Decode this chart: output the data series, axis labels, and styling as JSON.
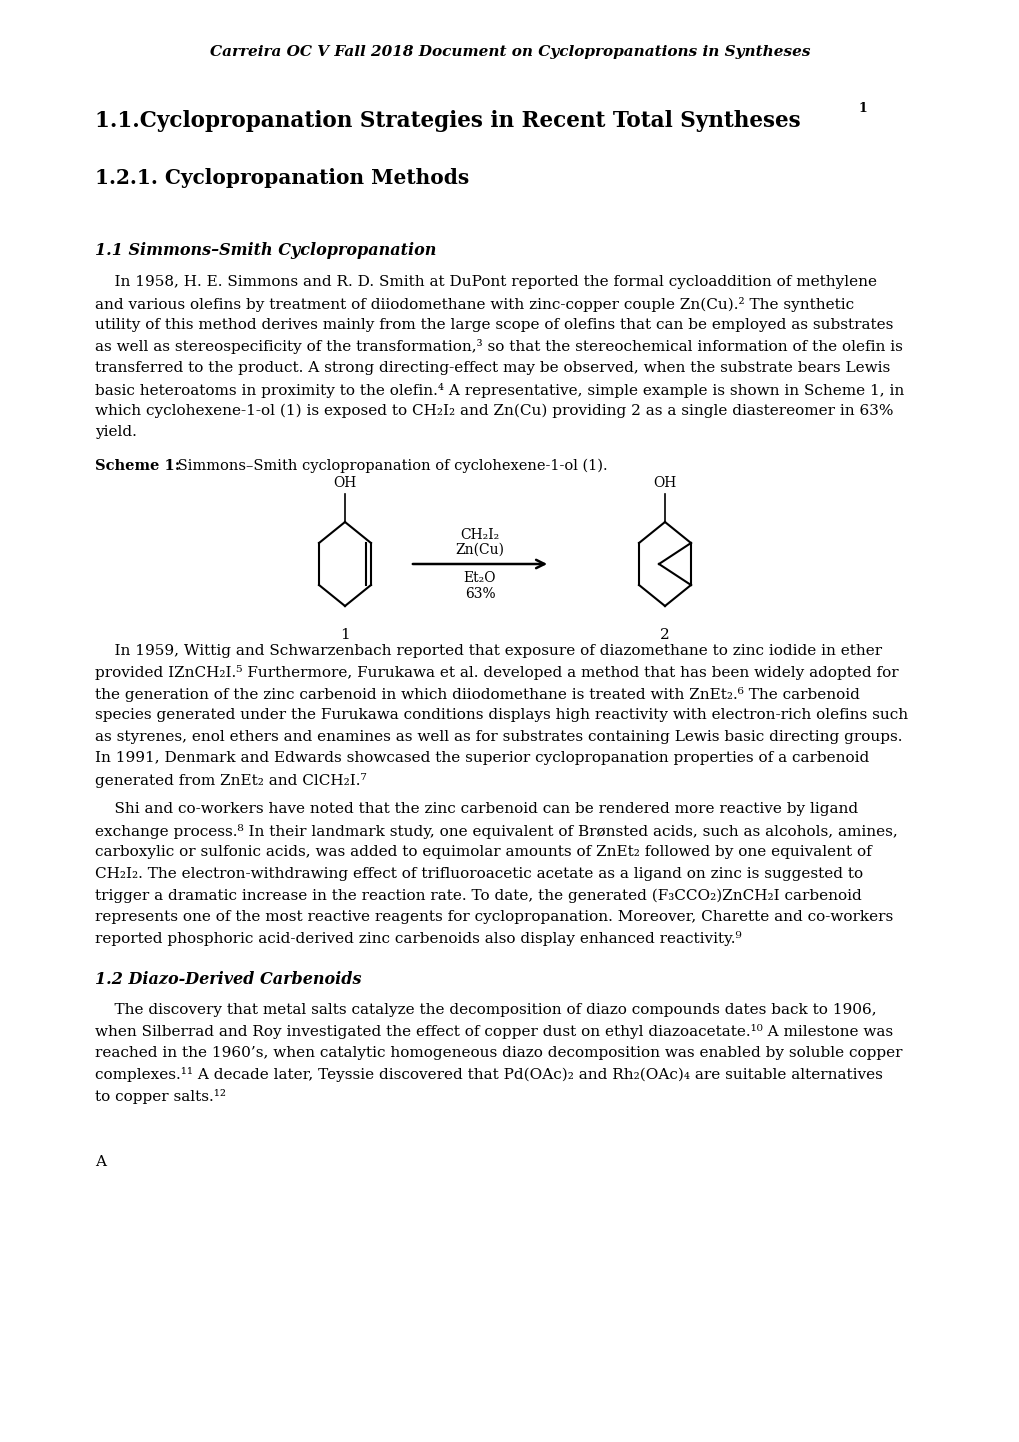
{
  "header": "Carreira OC V Fall 2018 Document on Cyclopropanations in Syntheses",
  "title1": "1.1.Cyclopropanation Strategies in Recent Total Syntheses",
  "title1_sup": "1",
  "title2": "1.2.1. Cyclopropanation Methods",
  "sec1": "1.1 Simmons–Smith Cyclopropanation",
  "para1_lines": [
    "    In 1958, H. E. Simmons and R. D. Smith at DuPont reported the formal cycloaddition of methylene",
    "and various olefins by treatment of diiodomethane with zinc-copper couple Zn(Cu).² The synthetic",
    "utility of this method derives mainly from the large scope of olefins that can be employed as substrates",
    "as well as stereospecificity of the transformation,³ so that the stereochemical information of the olefin is",
    "transferred to the product. A strong directing-effect may be observed, when the substrate bears Lewis",
    "basic heteroatoms in proximity to the olefin.⁴ A representative, simple example is shown in Scheme 1, in",
    "which cyclohexene-1-ol (1) is exposed to CH₂I₂ and Zn(Cu) providing 2 as a single diastereomer in 63%",
    "yield."
  ],
  "scheme1_bold": "Scheme 1:",
  "scheme1_rest": " Simmons–Smith cyclopropanation of cyclohexene-1-ol (1).",
  "reagent1": "CH₂I₂",
  "reagent2": "Zn(Cu)",
  "reagent3": "Et₂O",
  "reagent4": "63%",
  "mol1_label": "1",
  "mol2_label": "2",
  "para2_lines": [
    "    In 1959, Wittig and Schwarzenbach reported that exposure of diazomethane to zinc iodide in ether",
    "provided IZnCH₂I.⁵ Furthermore, Furukawa et al. developed a method that has been widely adopted for",
    "the generation of the zinc carbenoid in which diiodomethane is treated with ZnEt₂.⁶ The carbenoid",
    "species generated under the Furukawa conditions displays high reactivity with electron-rich olefins such",
    "as styrenes, enol ethers and enamines as well as for substrates containing Lewis basic directing groups.",
    "In 1991, Denmark and Edwards showcased the superior cyclopropanation properties of a carbenoid",
    "generated from ZnEt₂ and ClCH₂I.⁷"
  ],
  "para3_lines": [
    "    Shi and co-workers have noted that the zinc carbenoid can be rendered more reactive by ligand",
    "exchange process.⁸ In their landmark study, one equivalent of Brønsted acids, such as alcohols, amines,",
    "carboxylic or sulfonic acids, was added to equimolar amounts of ZnEt₂ followed by one equivalent of",
    "CH₂I₂. The electron-withdrawing effect of trifluoroacetic acetate as a ligand on zinc is suggested to",
    "trigger a dramatic increase in the reaction rate. To date, the generated (F₃CCO₂)ZnCH₂I carbenoid",
    "represents one of the most reactive reagents for cyclopropanation. Moreover, Charette and co-workers",
    "reported phosphoric acid-derived zinc carbenoids also display enhanced reactivity.⁹"
  ],
  "sec2": "1.2 Diazo-Derived Carbenoids",
  "para4_lines": [
    "    The discovery that metal salts catalyze the decomposition of diazo compounds dates back to 1906,",
    "when Silberrad and Roy investigated the effect of copper dust on ethyl diazoacetate.¹⁰ A milestone was",
    "reached in the 1960’s, when catalytic homogeneous diazo decomposition was enabled by soluble copper",
    "complexes.¹¹ A decade later, Teyssie discovered that Pd(OAc)₂ and Rh₂(OAc)₄ are suitable alternatives",
    "to copper salts.¹²"
  ],
  "footer": "A",
  "bg_color": "#ffffff"
}
